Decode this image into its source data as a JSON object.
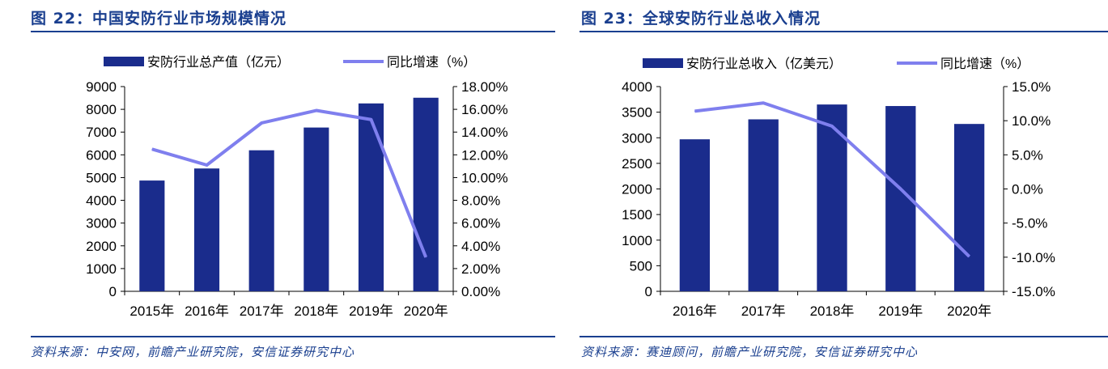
{
  "figures": [
    {
      "title": "图 22：中国安防行业市场规模情况",
      "source": "资料来源：中安网，前瞻产业研究院，安信证券研究中心"
    },
    {
      "title": "图 23：全球安防行业总收入情况",
      "source": "资料来源：赛迪顾问，前瞻产业研究院，安信证券研究中心"
    }
  ],
  "colors": {
    "bar": "#1a2c8c",
    "line": "#7f7fee",
    "title": "#1a3f8f"
  },
  "chart_data": [
    {
      "type": "bar",
      "categories": [
        "2015年",
        "2016年",
        "2017年",
        "2018年",
        "2019年",
        "2020年"
      ],
      "series": [
        {
          "name": "安防行业总产值（亿元）",
          "type": "bar",
          "axis": "left",
          "values": [
            4870,
            5400,
            6200,
            7200,
            8260,
            8510
          ]
        },
        {
          "name": "同比增速（%）",
          "type": "line",
          "axis": "right",
          "values": [
            12.5,
            11.1,
            14.8,
            15.9,
            15.1,
            3.0
          ]
        }
      ],
      "ylim": [
        0,
        9000
      ],
      "yticks": [
        "0",
        "1000",
        "2000",
        "3000",
        "4000",
        "5000",
        "6000",
        "7000",
        "8000",
        "9000"
      ],
      "y2lim": [
        0,
        18
      ],
      "y2ticks": [
        "0.00%",
        "2.00%",
        "4.00%",
        "6.00%",
        "8.00%",
        "10.00%",
        "12.00%",
        "14.00%",
        "16.00%",
        "18.00%"
      ],
      "legend": "top"
    },
    {
      "type": "bar",
      "categories": [
        "2016年",
        "2017年",
        "2018年",
        "2019年",
        "2020年"
      ],
      "series": [
        {
          "name": "安防行业总收入（亿美元）",
          "type": "bar",
          "axis": "left",
          "values": [
            2970,
            3360,
            3650,
            3620,
            3270
          ]
        },
        {
          "name": "同比增速（%）",
          "type": "line",
          "axis": "right",
          "values": [
            11.4,
            12.6,
            9.2,
            0.0,
            -9.9
          ]
        }
      ],
      "ylim": [
        0,
        4000
      ],
      "yticks": [
        "0",
        "500",
        "1000",
        "1500",
        "2000",
        "2500",
        "3000",
        "3500",
        "4000"
      ],
      "y2lim": [
        -15,
        15
      ],
      "y2ticks": [
        "-15.0%",
        "-10.0%",
        "-5.0%",
        "0.0%",
        "5.0%",
        "10.0%",
        "15.0%"
      ],
      "legend": "top"
    }
  ]
}
